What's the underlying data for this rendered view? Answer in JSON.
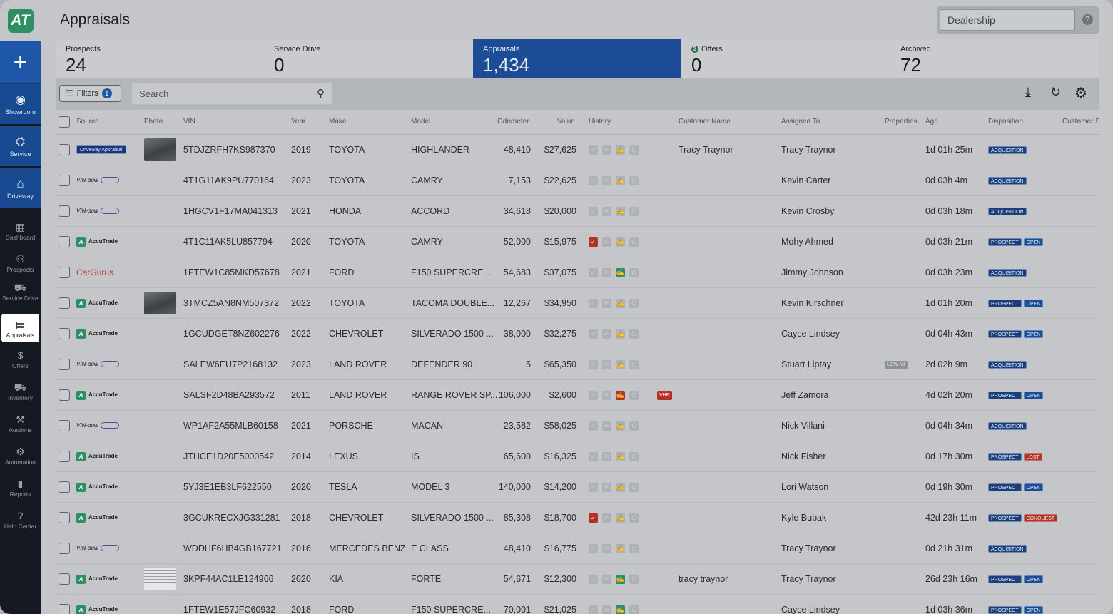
{
  "sidebar": {
    "logo": "AT",
    "items": [
      {
        "label": "Showroom",
        "icon": "user-circle-icon"
      },
      {
        "label": "Service",
        "icon": "car-service-icon"
      },
      {
        "label": "Driveway",
        "icon": "garage-icon"
      },
      {
        "label": "Dashboard",
        "icon": "grid-icon"
      },
      {
        "label": "Prospects",
        "icon": "people-icon"
      },
      {
        "label": "Service Drive",
        "icon": "car-icon"
      },
      {
        "label": "Appraisals",
        "icon": "clipboard-icon",
        "active": true
      },
      {
        "label": "Offers",
        "icon": "dollar-icon"
      },
      {
        "label": "Inventory",
        "icon": "car-icon"
      },
      {
        "label": "Auctions",
        "icon": "gavel-icon"
      },
      {
        "label": "Automation",
        "icon": "robot-icon"
      },
      {
        "label": "Reports",
        "icon": "bar-chart-icon"
      },
      {
        "label": "Help Center",
        "icon": "help-icon"
      }
    ]
  },
  "header": {
    "title": "Appraisals",
    "dealership_placeholder": "Dealership"
  },
  "tabs": [
    {
      "label": "Prospects",
      "count": "24"
    },
    {
      "label": "Service Drive",
      "count": "0"
    },
    {
      "label": "Appraisals",
      "count": "1,434",
      "active": true
    },
    {
      "label": "Offers",
      "count": "0"
    },
    {
      "label": "Archived",
      "count": "72"
    }
  ],
  "toolbar": {
    "filters_label": "Filters",
    "filters_count": "1",
    "search_placeholder": "Search"
  },
  "columns": [
    "Source",
    "Photo",
    "VIN",
    "Year",
    "Make",
    "Model",
    "Odometer",
    "Value",
    "History",
    "Customer Name",
    "Assigned To",
    "Properties",
    "Age",
    "Disposition",
    "Customer S"
  ],
  "rows": [
    {
      "source": "Driveway Appraisal",
      "photo": "car",
      "vin": "5TDJZRFH7KS987370",
      "year": "2019",
      "make": "TOYOTA",
      "model": "HIGHLANDER",
      "odometer": "48,410",
      "value": "$27,625",
      "history": [
        "",
        "",
        "",
        ""
      ],
      "customer": "Tracy Traynor",
      "assigned": "Tracy Traynor",
      "props": "",
      "age": "1d 01h 25m",
      "disp": [
        {
          "t": "ACQUISITION",
          "c": ""
        }
      ]
    },
    {
      "source": "VIN-dow",
      "photo": "",
      "vin": "4T1G11AK9PU770164",
      "year": "2023",
      "make": "TOYOTA",
      "model": "CAMRY",
      "odometer": "7,153",
      "value": "$22,625",
      "history": [
        "",
        "",
        "",
        ""
      ],
      "customer": "",
      "assigned": "Kevin Carter",
      "props": "",
      "age": "0d 03h 4m",
      "disp": [
        {
          "t": "ACQUISITION",
          "c": ""
        }
      ]
    },
    {
      "source": "VIN-dow",
      "photo": "",
      "vin": "1HGCV1F17MA041313",
      "year": "2021",
      "make": "HONDA",
      "model": "ACCORD",
      "odometer": "34,618",
      "value": "$20,000",
      "history": [
        "",
        "",
        "",
        ""
      ],
      "customer": "",
      "assigned": "Kevin Crosby",
      "props": "",
      "age": "0d 03h 18m",
      "disp": [
        {
          "t": "ACQUISITION",
          "c": ""
        }
      ]
    },
    {
      "source": "AccuTrade",
      "photo": "",
      "vin": "4T1C11AK5LU857794",
      "year": "2020",
      "make": "TOYOTA",
      "model": "CAMRY",
      "odometer": "52,000",
      "value": "$15,975",
      "history": [
        "red",
        "",
        "",
        ""
      ],
      "customer": "",
      "assigned": "Mohy Ahmed",
      "props": "",
      "age": "0d 03h 21m",
      "disp": [
        {
          "t": "PROSPECT",
          "c": ""
        },
        {
          "t": "OPEN",
          "c": "open"
        }
      ]
    },
    {
      "source": "CarGurus",
      "photo": "",
      "vin": "1FTEW1C85MKD57678",
      "year": "2021",
      "make": "FORD",
      "model": "F150 SUPERCRE...",
      "odometer": "54,683",
      "value": "$37,075",
      "history": [
        "",
        "",
        "green",
        ""
      ],
      "customer": "",
      "assigned": "Jimmy Johnson",
      "props": "",
      "age": "0d 03h 23m",
      "disp": [
        {
          "t": "ACQUISITION",
          "c": ""
        }
      ]
    },
    {
      "source": "AccuTrade",
      "photo": "car",
      "vin": "3TMCZ5AN8NM507372",
      "year": "2022",
      "make": "TOYOTA",
      "model": "TACOMA DOUBLE...",
      "odometer": "12,267",
      "value": "$34,950",
      "history": [
        "",
        "",
        "",
        ""
      ],
      "customer": "",
      "assigned": "Kevin Kirschner",
      "props": "",
      "age": "1d 01h 20m",
      "disp": [
        {
          "t": "PROSPECT",
          "c": ""
        },
        {
          "t": "OPEN",
          "c": "open"
        }
      ]
    },
    {
      "source": "AccuTrade",
      "photo": "",
      "vin": "1GCUDGET8NZ602276",
      "year": "2022",
      "make": "CHEVROLET",
      "model": "SILVERADO 1500 ...",
      "odometer": "38,000",
      "value": "$32,275",
      "history": [
        "",
        "",
        "",
        ""
      ],
      "customer": "",
      "assigned": "Cayce Lindsey",
      "props": "",
      "age": "0d 04h 43m",
      "disp": [
        {
          "t": "PROSPECT",
          "c": ""
        },
        {
          "t": "OPEN",
          "c": "open"
        }
      ]
    },
    {
      "source": "VIN-dow",
      "photo": "",
      "vin": "SALEW6EU7P2168132",
      "year": "2023",
      "make": "LAND ROVER",
      "model": "DEFENDER 90",
      "odometer": "5",
      "value": "$65,350",
      "history": [
        "",
        "",
        "",
        ""
      ],
      "customer": "",
      "assigned": "Stuart Liptay",
      "props": "LOW MI",
      "age": "2d 02h 9m",
      "disp": [
        {
          "t": "ACQUISITION",
          "c": ""
        }
      ]
    },
    {
      "source": "AccuTrade",
      "photo": "",
      "vin": "SALSF2D48BA293572",
      "year": "2011",
      "make": "LAND ROVER",
      "model": "RANGE ROVER SP...",
      "odometer": "106,000",
      "value": "$2,600",
      "history": [
        "",
        "",
        "red",
        ""
      ],
      "vhr": "VHR",
      "customer": "",
      "assigned": "Jeff Zamora",
      "props": "",
      "age": "4d 02h 20m",
      "disp": [
        {
          "t": "PROSPECT",
          "c": ""
        },
        {
          "t": "OPEN",
          "c": "open"
        }
      ]
    },
    {
      "source": "VIN-dow",
      "photo": "",
      "vin": "WP1AF2A55MLB60158",
      "year": "2021",
      "make": "PORSCHE",
      "model": "MACAN",
      "odometer": "23,582",
      "value": "$58,025",
      "history": [
        "",
        "",
        "",
        ""
      ],
      "customer": "",
      "assigned": "Nick Villani",
      "props": "",
      "age": "0d 04h 34m",
      "disp": [
        {
          "t": "ACQUISITION",
          "c": ""
        }
      ]
    },
    {
      "source": "AccuTrade",
      "photo": "",
      "vin": "JTHCE1D20E5000542",
      "year": "2014",
      "make": "LEXUS",
      "model": "IS",
      "odometer": "65,600",
      "value": "$16,325",
      "history": [
        "",
        "",
        "",
        ""
      ],
      "customer": "",
      "assigned": "Nick Fisher",
      "props": "",
      "age": "0d 17h 30m",
      "disp": [
        {
          "t": "PROSPECT",
          "c": ""
        },
        {
          "t": "LOST",
          "c": "red"
        }
      ]
    },
    {
      "source": "AccuTrade",
      "photo": "",
      "vin": "5YJ3E1EB3LF622550",
      "year": "2020",
      "make": "TESLA",
      "model": "MODEL 3",
      "odometer": "140,000",
      "value": "$14,200",
      "history": [
        "",
        "",
        "",
        ""
      ],
      "customer": "",
      "assigned": "Lori Watson",
      "props": "",
      "age": "0d 19h 30m",
      "disp": [
        {
          "t": "PROSPECT",
          "c": ""
        },
        {
          "t": "OPEN",
          "c": "open"
        }
      ]
    },
    {
      "source": "AccuTrade",
      "photo": "",
      "vin": "3GCUKRECXJG331281",
      "year": "2018",
      "make": "CHEVROLET",
      "model": "SILVERADO 1500 ...",
      "odometer": "85,308",
      "value": "$18,700",
      "history": [
        "red",
        "",
        "",
        ""
      ],
      "customer": "",
      "assigned": "Kyle Bubak",
      "props": "",
      "age": "42d 23h 11m",
      "disp": [
        {
          "t": "PROSPECT",
          "c": ""
        },
        {
          "t": "CONQUEST",
          "c": "red"
        }
      ]
    },
    {
      "source": "VIN-dow",
      "photo": "",
      "vin": "WDDHF6HB4GB167721",
      "year": "2016",
      "make": "MERCEDES BENZ",
      "model": "E CLASS",
      "odometer": "48,410",
      "value": "$16,775",
      "history": [
        "",
        "",
        "",
        ""
      ],
      "customer": "",
      "assigned": "Tracy Traynor",
      "props": "",
      "age": "0d 21h 31m",
      "disp": [
        {
          "t": "ACQUISITION",
          "c": ""
        }
      ]
    },
    {
      "source": "AccuTrade",
      "photo": "doc",
      "vin": "3KPF44AC1LE124966",
      "year": "2020",
      "make": "KIA",
      "model": "FORTE",
      "odometer": "54,671",
      "value": "$12,300",
      "history": [
        "",
        "",
        "green",
        ""
      ],
      "customer": "tracy traynor",
      "assigned": "Tracy Traynor",
      "props": "",
      "age": "26d 23h 16m",
      "disp": [
        {
          "t": "PROSPECT",
          "c": ""
        },
        {
          "t": "OPEN",
          "c": "open"
        }
      ]
    },
    {
      "source": "AccuTrade",
      "photo": "",
      "vin": "1FTEW1E57JFC60932",
      "year": "2018",
      "make": "FORD",
      "model": "F150 SUPERCRE...",
      "odometer": "70,001",
      "value": "$21,025",
      "history": [
        "",
        "",
        "green",
        ""
      ],
      "customer": "",
      "assigned": "Cayce Lindsey",
      "props": "",
      "age": "1d 03h 36m",
      "disp": [
        {
          "t": "PROSPECT",
          "c": ""
        },
        {
          "t": "OPEN",
          "c": "open"
        }
      ]
    }
  ]
}
